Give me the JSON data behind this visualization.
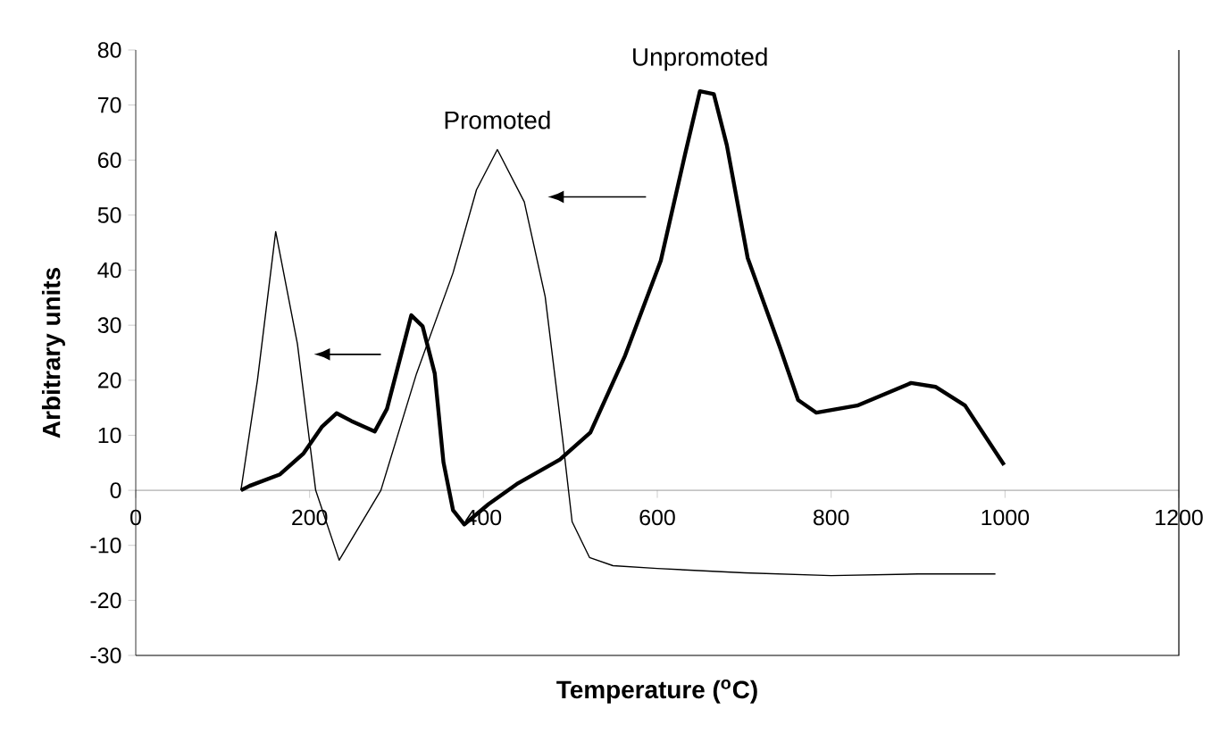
{
  "chart_data": {
    "type": "line",
    "xlabel": "Temperature ($^{o}$C)",
    "ylabel": "Arbitrary units",
    "xlim": [
      0,
      1200
    ],
    "xticks": [
      0,
      200,
      400,
      600,
      800,
      1000,
      1200
    ],
    "ylim": [
      -30,
      80
    ],
    "yticks": [
      -30,
      -20,
      -10,
      0,
      10,
      20,
      30,
      40,
      50,
      60,
      70,
      80
    ],
    "grid": false,
    "legend": false,
    "marker": "none",
    "line_style": "solid",
    "series": [
      {
        "name": "Promoted",
        "color": "#000000",
        "x": [
          121,
          140,
          161,
          186,
          207,
          234,
          282,
          323,
          365,
          392,
          416,
          447,
          471,
          491,
          502,
          522,
          549,
          600,
          700,
          800,
          900,
          989
        ],
        "values": [
          0,
          20,
          47,
          26.6,
          0,
          -12.7,
          0,
          21.2,
          39.5,
          54.6,
          61.9,
          52.4,
          35.2,
          9.4,
          -5.7,
          -12.2,
          -13.7,
          -14.2,
          -15,
          -15.5,
          -15.2,
          -15.2
        ]
      },
      {
        "name": "Unpromoted",
        "color": "#000000",
        "x": [
          121,
          131,
          166,
          193,
          214,
          231,
          248,
          275,
          289,
          317,
          330,
          344,
          354,
          365,
          378,
          406,
          440,
          488,
          523,
          563,
          604,
          632,
          649,
          665,
          680,
          704,
          741,
          762,
          783,
          830,
          892,
          920,
          954,
          999
        ],
        "values": [
          0,
          0.8,
          2.9,
          6.7,
          11.5,
          14,
          12.6,
          10.7,
          14.8,
          31.8,
          29.8,
          21.2,
          5.1,
          -3.6,
          -6.2,
          -2.5,
          1.3,
          5.6,
          10.5,
          24.5,
          41.7,
          61.1,
          72.5,
          72,
          62.7,
          42.2,
          26,
          16.4,
          14.1,
          15.4,
          19.5,
          18.8,
          15.4,
          4.6
        ]
      }
    ]
  }
}
